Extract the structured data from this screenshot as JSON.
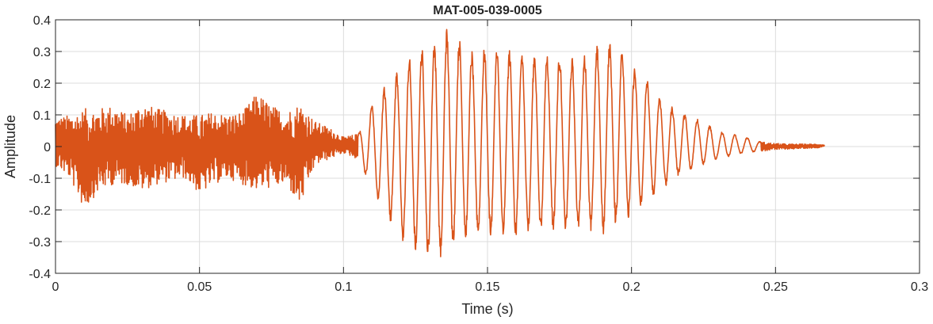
{
  "chart_data": {
    "type": "line",
    "title": "MAT-005-039-0005",
    "xlabel": "Time (s)",
    "ylabel": "Amplitude",
    "xlim": [
      0,
      0.3
    ],
    "ylim": [
      -0.4,
      0.4
    ],
    "xticks": [
      0,
      0.05,
      0.1,
      0.15,
      0.2,
      0.25,
      0.3
    ],
    "xtick_labels": [
      "0",
      "0.05",
      "0.1",
      "0.15",
      "0.2",
      "0.25",
      "0.3"
    ],
    "yticks": [
      -0.4,
      -0.3,
      -0.2,
      -0.1,
      0,
      0.1,
      0.2,
      0.3,
      0.4
    ],
    "ytick_labels": [
      "-0.4",
      "-0.3",
      "-0.2",
      "-0.1",
      "0",
      "0.1",
      "0.2",
      "0.3",
      "0.4"
    ],
    "grid": true,
    "series": [
      {
        "color": "#D95319",
        "x": [
          0,
          0.005,
          0.01,
          0.015,
          0.02,
          0.025,
          0.03,
          0.035,
          0.04,
          0.045,
          0.05,
          0.055,
          0.06,
          0.065,
          0.07,
          0.075,
          0.08,
          0.085,
          0.09,
          0.095,
          0.1,
          0.105,
          0.11,
          0.115,
          0.12,
          0.125,
          0.13,
          0.135,
          0.14,
          0.145,
          0.15,
          0.155,
          0.16,
          0.165,
          0.17,
          0.175,
          0.18,
          0.185,
          0.19,
          0.195,
          0.2,
          0.205,
          0.21,
          0.215,
          0.22,
          0.225,
          0.23,
          0.235,
          0.24,
          0.245,
          0.25,
          0.255,
          0.26,
          0.265,
          0.267
        ],
        "y_max": [
          0.09,
          0.1,
          0.12,
          0.12,
          0.13,
          0.1,
          0.14,
          0.12,
          0.11,
          0.1,
          0.1,
          0.11,
          0.1,
          0.11,
          0.17,
          0.13,
          0.11,
          0.14,
          0.08,
          0.06,
          0.03,
          0.04,
          0.14,
          0.2,
          0.26,
          0.31,
          0.33,
          0.38,
          0.35,
          0.3,
          0.32,
          0.31,
          0.31,
          0.3,
          0.3,
          0.3,
          0.28,
          0.3,
          0.33,
          0.34,
          0.26,
          0.22,
          0.16,
          0.12,
          0.1,
          0.08,
          0.05,
          0.04,
          0.03,
          0.015,
          0.01,
          0.008,
          0.008,
          0.008,
          0.005
        ],
        "y_min": [
          -0.06,
          -0.1,
          -0.2,
          -0.14,
          -0.12,
          -0.12,
          -0.14,
          -0.12,
          -0.11,
          -0.1,
          -0.15,
          -0.12,
          -0.1,
          -0.12,
          -0.14,
          -0.13,
          -0.12,
          -0.19,
          -0.06,
          -0.04,
          -0.02,
          -0.04,
          -0.14,
          -0.22,
          -0.3,
          -0.33,
          -0.36,
          -0.35,
          -0.32,
          -0.29,
          -0.3,
          -0.28,
          -0.29,
          -0.28,
          -0.28,
          -0.27,
          -0.27,
          -0.27,
          -0.28,
          -0.25,
          -0.22,
          -0.18,
          -0.14,
          -0.1,
          -0.08,
          -0.06,
          -0.04,
          -0.03,
          -0.02,
          -0.015,
          -0.01,
          -0.008,
          -0.006,
          -0.004,
          0.002
        ]
      }
    ]
  }
}
